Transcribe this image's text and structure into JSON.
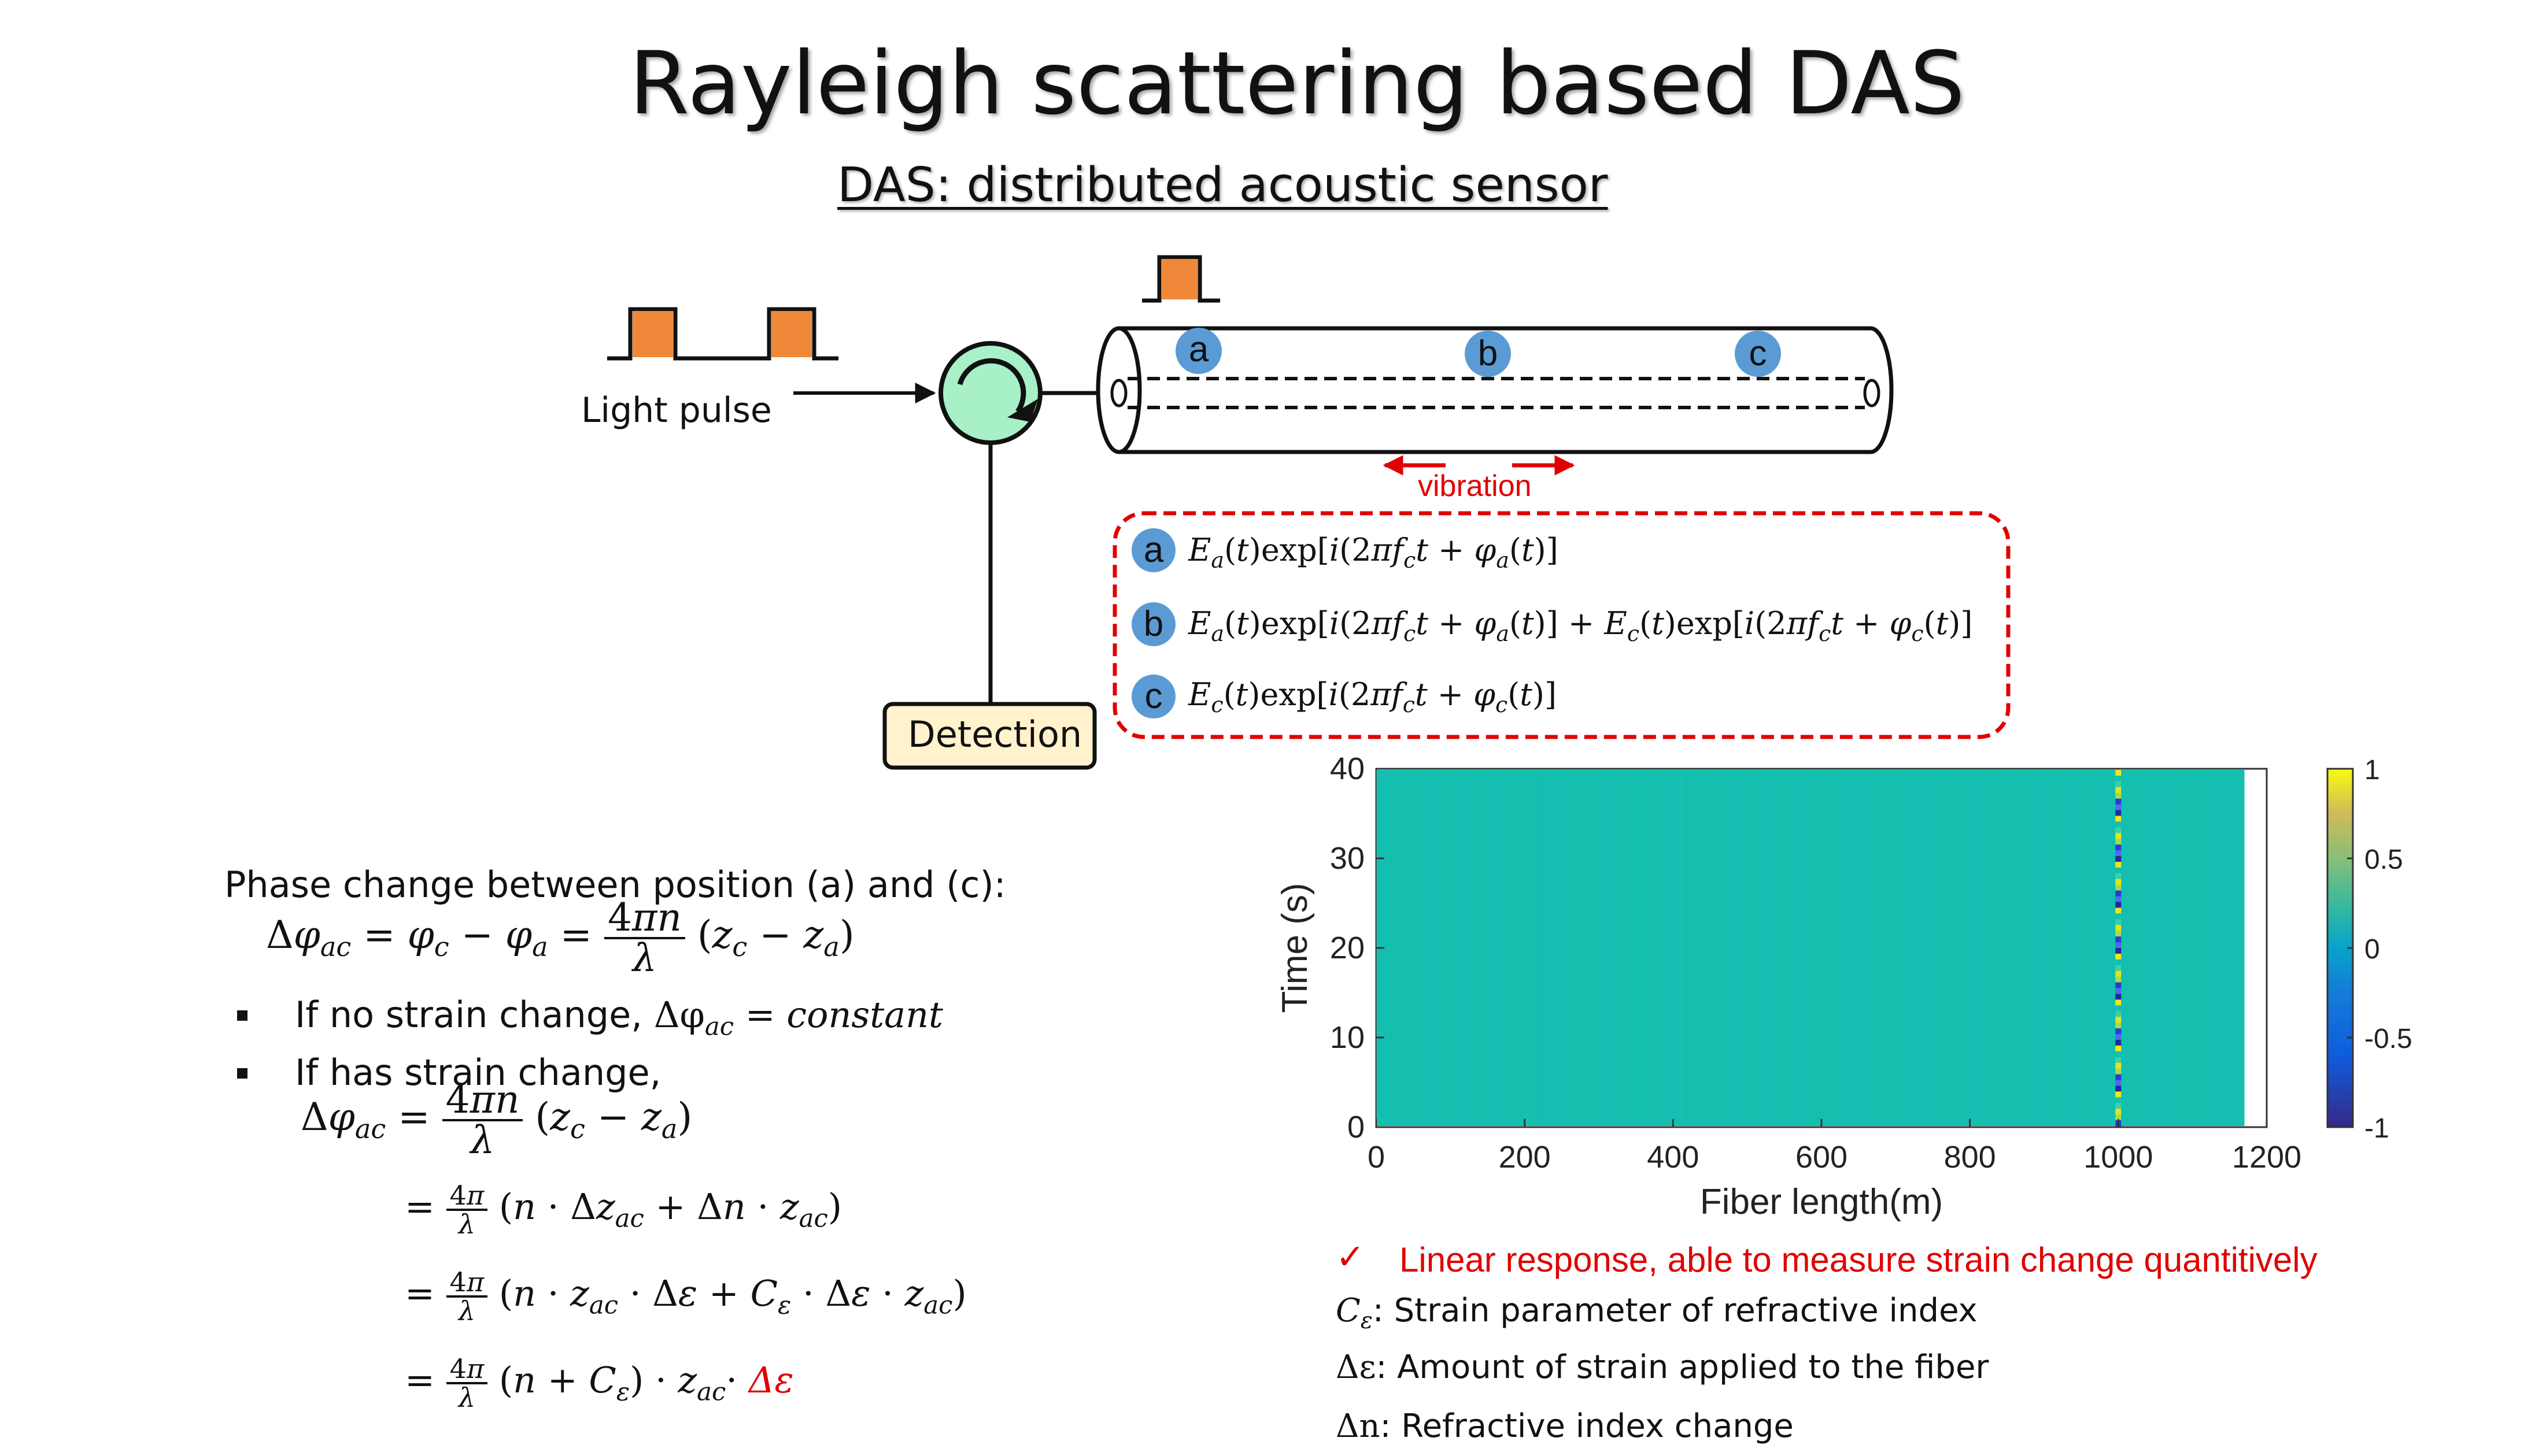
{
  "title": "Rayleigh scattering based DAS",
  "subtitle": "DAS: distributed acoustic sensor",
  "diagram": {
    "light_pulse_label": "Light pulse",
    "detection_label": "Detection",
    "vibration_label": "vibration",
    "points": [
      "a",
      "b",
      "c"
    ],
    "signals": [
      {
        "marker": "a",
        "expr": "E_a(t)exp[i(2πf_c t + φ_a(t)]"
      },
      {
        "marker": "b",
        "expr": "E_a(t)exp[i(2πf_c t + φ_a(t)] + E_c(t)exp[i(2πf_c t + φ_c(t)]"
      },
      {
        "marker": "c",
        "expr": "E_c(t)exp[i(2πf_c t + φ_c(t)]"
      }
    ],
    "colors": {
      "pulse": "#f0883a",
      "circulator": "#a8f0c8",
      "marker": "#5b9bd5",
      "detection_bg": "#fff2cc",
      "dashed_box": "#e00000"
    }
  },
  "derivation": {
    "intro": "Phase change between position (a) and (c):",
    "bullet1_text": "If no strain change,",
    "bullet1_math": "Δφ",
    "bullet1_sub": "ac",
    "bullet1_rhs": " = constant",
    "bullet2_text": "If has strain change,",
    "highlight": "Δε"
  },
  "chart_data": {
    "type": "heatmap",
    "xlabel": "Fiber length(m)",
    "ylabel": "Time (s)",
    "xlim": [
      0,
      1200
    ],
    "ylim": [
      0,
      40
    ],
    "xticks": [
      "0",
      "200",
      "400",
      "600",
      "800",
      "1000",
      "1200"
    ],
    "yticks": [
      "0",
      "10",
      "20",
      "30",
      "40"
    ],
    "data_x_extent": [
      0,
      1170
    ],
    "colorbar": {
      "min": -1,
      "max": 1,
      "ticks": [
        "1",
        "0.5",
        "0",
        "-0.5",
        "-1"
      ]
    },
    "background_value": 0,
    "vibration_location_m": 1000
  },
  "notes": {
    "check_mark": "✓",
    "headline": "Linear response, able to measure strain change quantitively",
    "items": [
      {
        "symbol": "C",
        "symbol_sub": "ε",
        "text": "Strain parameter of refractive index"
      },
      {
        "symbol": "Δε",
        "symbol_sub": "",
        "text": "Amount of strain applied to the fiber"
      },
      {
        "symbol": "Δn",
        "symbol_sub": "",
        "text": "Refractive index change"
      }
    ]
  }
}
